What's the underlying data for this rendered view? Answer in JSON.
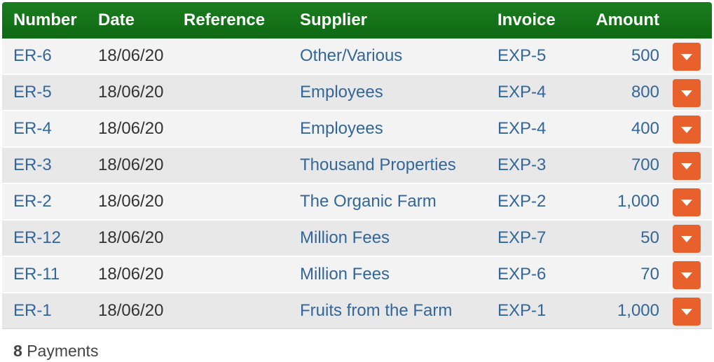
{
  "header": {
    "number": "Number",
    "date": "Date",
    "reference": "Reference",
    "supplier": "Supplier",
    "invoice": "Invoice",
    "amount": "Amount"
  },
  "rows": [
    {
      "number": "ER-6",
      "date": "18/06/20",
      "reference": "",
      "supplier": "Other/Various",
      "invoice": "EXP-5",
      "amount": "500"
    },
    {
      "number": "ER-5",
      "date": "18/06/20",
      "reference": "",
      "supplier": "Employees",
      "invoice": "EXP-4",
      "amount": "800"
    },
    {
      "number": "ER-4",
      "date": "18/06/20",
      "reference": "",
      "supplier": "Employees",
      "invoice": "EXP-4",
      "amount": "400"
    },
    {
      "number": "ER-3",
      "date": "18/06/20",
      "reference": "",
      "supplier": "Thousand Properties",
      "invoice": "EXP-3",
      "amount": "700"
    },
    {
      "number": "ER-2",
      "date": "18/06/20",
      "reference": "",
      "supplier": "The Organic Farm",
      "invoice": "EXP-2",
      "amount": "1,000"
    },
    {
      "number": "ER-12",
      "date": "18/06/20",
      "reference": "",
      "supplier": "Million Fees",
      "invoice": "EXP-7",
      "amount": "50"
    },
    {
      "number": "ER-11",
      "date": "18/06/20",
      "reference": "",
      "supplier": "Million Fees",
      "invoice": "EXP-6",
      "amount": "70"
    },
    {
      "number": "ER-1",
      "date": "18/06/20",
      "reference": "",
      "supplier": "Fruits from the Farm",
      "invoice": "EXP-1",
      "amount": "1,000"
    }
  ],
  "footer": {
    "count": "8",
    "label": "Payments"
  },
  "icons": {
    "row_action": "chevron-down-icon"
  },
  "colors": {
    "header_green": "#1b7d1f",
    "link_blue": "#336699",
    "action_orange": "#e8602c"
  }
}
